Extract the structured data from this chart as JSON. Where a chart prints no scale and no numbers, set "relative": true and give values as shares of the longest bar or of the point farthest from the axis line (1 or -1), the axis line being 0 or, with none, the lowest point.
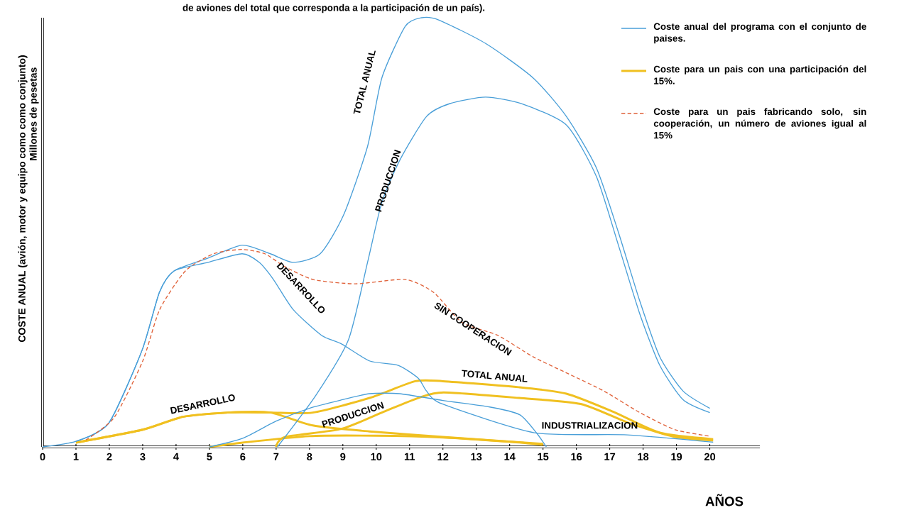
{
  "chart_data": {
    "type": "line",
    "relative": true,
    "title": "de aviones del total que corresponda a la participación de un país).",
    "xlabel": "AÑOS",
    "ylabel": "COSTE ANUAL (avión, motor y equipo como como conjunto)",
    "xlim": [
      0,
      21.5
    ],
    "xticks": [
      0,
      1,
      2,
      3,
      4,
      5,
      6,
      7,
      8,
      9,
      10,
      11,
      12,
      13,
      14,
      15,
      16,
      17,
      18,
      19,
      20
    ],
    "legend": "top right",
    "marker": "none",
    "series": [
      {
        "name": "Coste anual del programa con el conjunto de paises.",
        "color": "#4a9fd8",
        "x": [
          0,
          1,
          1.98,
          2.98,
          3.5,
          3.94,
          4.96,
          5.98,
          6.83,
          7.51,
          8.32,
          9.02,
          9.74,
          10.17,
          10.87,
          11.36,
          11.87,
          13.28,
          14.7,
          15.7,
          16.6,
          17.26,
          17.9,
          18.5,
          19.2,
          20.0
        ],
        "values": [
          0,
          0.013,
          0.055,
          0.225,
          0.36,
          0.41,
          0.44,
          0.47,
          0.45,
          0.43,
          0.45,
          0.54,
          0.7,
          0.86,
          0.98,
          1.0,
          0.995,
          0.94,
          0.86,
          0.77,
          0.65,
          0.5,
          0.34,
          0.21,
          0.13,
          0.09
        ]
      },
      {
        "color": "#4a9fd8",
        "x": [
          7.04,
          8.19,
          9.17,
          9.74,
          10.17,
          10.72,
          11.51,
          12.21,
          13.28,
          14.34,
          15.7,
          16.6,
          17.26,
          17.9,
          18.5,
          19.2,
          20.0
        ],
        "values": [
          0,
          0.12,
          0.25,
          0.43,
          0.57,
          0.67,
          0.77,
          0.8,
          0.815,
          0.8,
          0.75,
          0.63,
          0.47,
          0.31,
          0.19,
          0.11,
          0.08
        ]
      },
      {
        "color": "#4a9fd8",
        "x": [
          1,
          1.98,
          2.98,
          3.5,
          3.94,
          4.96,
          5.98,
          6.49,
          6.92,
          7.51,
          8.36,
          8.96,
          9.81,
          10.66,
          11.26,
          11.51,
          11.98,
          14.74,
          17.53,
          20.1
        ],
        "values": [
          0.013,
          0.055,
          0.225,
          0.36,
          0.41,
          0.43,
          0.45,
          0.43,
          0.39,
          0.32,
          0.26,
          0.24,
          0.2,
          0.19,
          0.16,
          0.13,
          0.1,
          0.033,
          0.028,
          0.011
        ]
      },
      {
        "color": "#4a9fd8",
        "x": [
          5,
          6,
          7,
          8,
          9,
          9.8,
          10.7,
          12,
          13.4,
          14.3,
          14.8,
          15.1
        ],
        "values": [
          0,
          0.02,
          0.06,
          0.09,
          0.11,
          0.124,
          0.124,
          0.108,
          0.093,
          0.075,
          0.033,
          0
        ]
      },
      {
        "name": "Coste para un pais con una participación del 15%.",
        "color": "#f0c020",
        "x": [
          1,
          3,
          4.2,
          5.55,
          6.83,
          8.1,
          9.8,
          11.17,
          12.0,
          14.27,
          15.7,
          17.1,
          18.5,
          20.1
        ],
        "values": [
          0.01,
          0.04,
          0.07,
          0.08,
          0.08,
          0.08,
          0.114,
          0.153,
          0.153,
          0.139,
          0.124,
          0.082,
          0.033,
          0.018
        ]
      },
      {
        "color": "#f0c020",
        "x": [
          7,
          7.26,
          8.96,
          10.23,
          11.26,
          12.02,
          14.28,
          16.13,
          17.53,
          18.91,
          20.1
        ],
        "values": [
          0,
          0.023,
          0.042,
          0.082,
          0.114,
          0.127,
          0.114,
          0.1,
          0.057,
          0.024,
          0.015
        ]
      },
      {
        "color": "#f0c020",
        "x": [
          1,
          3,
          4.2,
          5.55,
          6.83,
          8.1,
          9.8,
          12.0,
          15.0
        ],
        "values": [
          0.01,
          0.04,
          0.07,
          0.08,
          0.08,
          0.05,
          0.036,
          0.023,
          0.007
        ]
      },
      {
        "color": "#f0c020",
        "x": [
          5,
          6,
          8,
          10,
          12,
          14,
          15
        ],
        "values": [
          0,
          0.01,
          0.025,
          0.026,
          0.022,
          0.012,
          0.005
        ]
      },
      {
        "name": "Coste para un pais fabricando solo, sin cooperación, un número de aviones igual al 15%",
        "color": "#e0623a",
        "line_style": "dashed",
        "x": [
          1.3,
          2.15,
          3.0,
          3.51,
          4.28,
          5.13,
          5.98,
          6.66,
          7.26,
          8.11,
          9.38,
          10.87,
          11.72,
          12.57,
          13.64,
          14.7,
          15.77,
          16.83,
          17.9,
          18.96,
          20.0
        ],
        "values": [
          0.016,
          0.069,
          0.2,
          0.32,
          0.41,
          0.45,
          0.46,
          0.45,
          0.42,
          0.39,
          0.38,
          0.39,
          0.36,
          0.29,
          0.26,
          0.21,
          0.17,
          0.13,
          0.08,
          0.04,
          0.025
        ]
      }
    ],
    "annotations": [
      "TOTAL ANUAL",
      "PRODUCCION",
      "DESARROLLO",
      "SIN COOPERACION",
      "TOTAL ANUAL",
      "DESARROLLO",
      "PRODUCCION",
      "INDUSTRIALIZACION",
      "Millones de pesetas"
    ]
  }
}
